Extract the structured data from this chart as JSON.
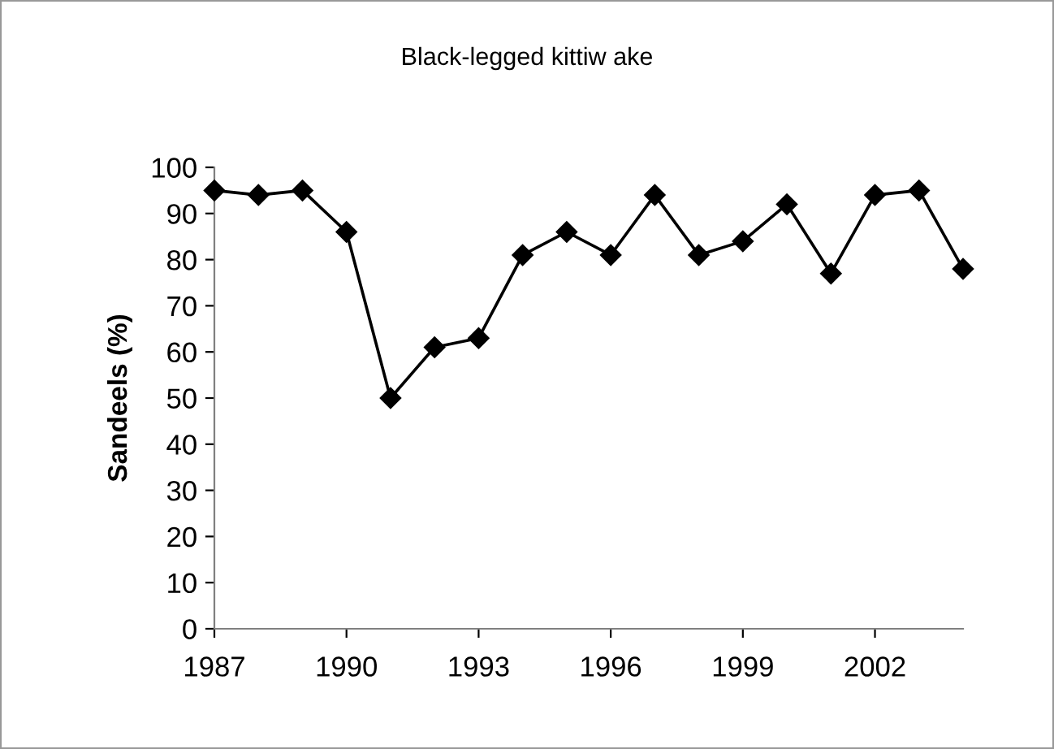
{
  "chart_data": {
    "type": "line",
    "title": "Black-legged kittiw ake",
    "ylabel": "Sandeels (%)",
    "x": [
      1987,
      1988,
      1989,
      1990,
      1991,
      1992,
      1993,
      1994,
      1995,
      1996,
      1997,
      1998,
      1999,
      2000,
      2001,
      2002,
      2003,
      2004
    ],
    "series": [
      {
        "color": "#000000",
        "values": [
          95,
          94,
          95,
          86,
          50,
          61,
          63,
          81,
          86,
          81,
          94,
          81,
          84,
          92,
          77,
          94,
          95,
          78
        ]
      }
    ],
    "xlim": [
      1987,
      2004
    ],
    "xticks": [
      1987,
      1990,
      1993,
      1996,
      1999,
      2002
    ],
    "ylim": [
      0,
      100
    ],
    "yticks": [
      0,
      10,
      20,
      30,
      40,
      50,
      60,
      70,
      80,
      90,
      100
    ],
    "marker": "diamond",
    "line_style": "solid",
    "grid": false,
    "legend": false
  }
}
